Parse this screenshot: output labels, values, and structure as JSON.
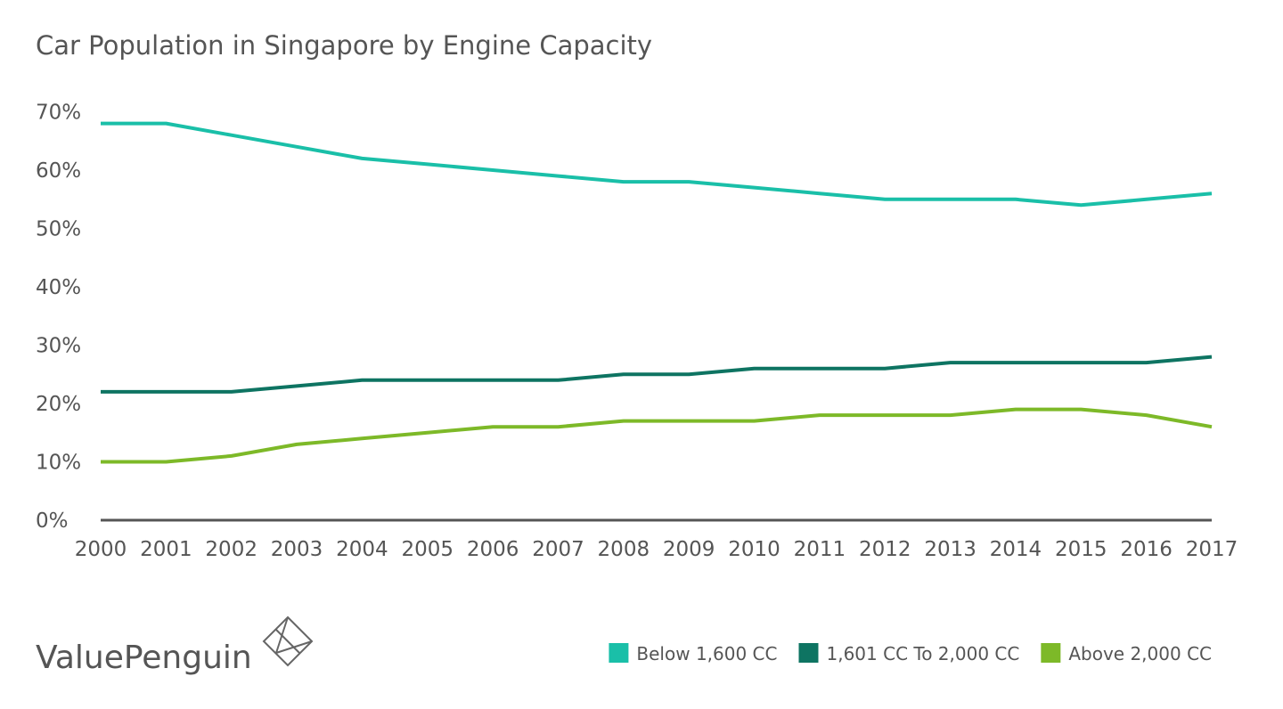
{
  "chart_data": {
    "type": "line",
    "title": "Car Population in Singapore by Engine Capacity",
    "xlabel": "",
    "ylabel": "",
    "x": [
      "2000",
      "2001",
      "2002",
      "2003",
      "2004",
      "2005",
      "2006",
      "2007",
      "2008",
      "2009",
      "2010",
      "2011",
      "2012",
      "2013",
      "2014",
      "2015",
      "2016",
      "2017"
    ],
    "yticks": [
      "0%",
      "10%",
      "20%",
      "30%",
      "40%",
      "50%",
      "60%",
      "70%"
    ],
    "ylim": [
      0,
      70
    ],
    "grid": false,
    "legend_position": "bottom-right",
    "series": [
      {
        "name": "Below 1,600 CC",
        "color": "#1ABFA8",
        "values": [
          68,
          68,
          66,
          64,
          62,
          61,
          60,
          59,
          58,
          58,
          57,
          56,
          55,
          55,
          55,
          54,
          55,
          56
        ]
      },
      {
        "name": "1,601 CC To 2,000 CC",
        "color": "#0E7462",
        "values": [
          22,
          22,
          22,
          23,
          24,
          24,
          24,
          24,
          25,
          25,
          26,
          26,
          26,
          27,
          27,
          27,
          27,
          28
        ]
      },
      {
        "name": "Above 2,000 CC",
        "color": "#7DB928",
        "values": [
          10,
          10,
          11,
          13,
          14,
          15,
          16,
          16,
          17,
          17,
          17,
          18,
          18,
          18,
          19,
          19,
          18,
          16
        ]
      }
    ]
  },
  "branding": {
    "logo_text": "ValuePenguin",
    "logo_icon": "diamond-logo-icon"
  }
}
